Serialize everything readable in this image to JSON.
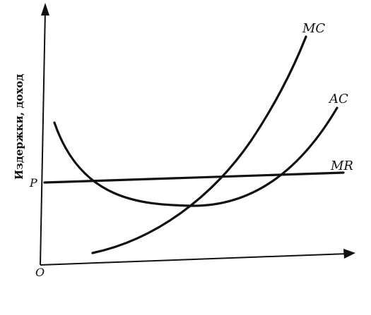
{
  "diagram": {
    "y_axis_label": "Издержки, доход",
    "origin_label": "O",
    "price_label": "P",
    "curves": [
      {
        "id": "mc",
        "label": "MC"
      },
      {
        "id": "ac",
        "label": "AC"
      },
      {
        "id": "mr",
        "label": "MR"
      }
    ]
  }
}
